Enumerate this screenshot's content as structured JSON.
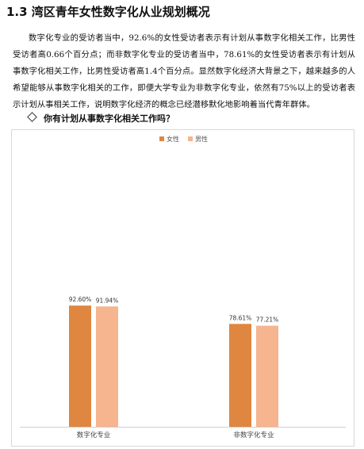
{
  "page": {
    "title": "1.3 湾区青年女性数字化从业规划概况",
    "paragraph": "数字化专业的受访者当中，92.6%的女性受访者表示有计划从事数字化相关工作，比男性受访者高0.66个百分点；而非数字化专业的受访者当中，78.61%的女性受访者表示有计划从事数字化相关工作，比男性受访者高1.4个百分点。显然数字化经济大背景之下，越来越多的人希望能够从事数字化相关的工作，即便大学专业为非数字化专业，依然有75%以上的受访者表示计划从事相关工作，说明数字化经济的概念已经潜移默化地影响着当代青年群体。",
    "question": "你有计划从事数字化相关工作吗？"
  },
  "chart_data": {
    "type": "bar",
    "categories": [
      "数字化专业",
      "非数字化专业"
    ],
    "series": [
      {
        "name": "女性",
        "values": [
          92.6,
          78.61
        ],
        "labels": [
          "92.60%",
          "78.61%"
        ],
        "color": "#df8640"
      },
      {
        "name": "男性",
        "values": [
          91.94,
          77.21
        ],
        "labels": [
          "91.94%",
          "77.21%"
        ],
        "color": "#f6b48f"
      }
    ],
    "ylim": [
      0,
      100
    ],
    "grid": false,
    "legend": "top-center"
  }
}
